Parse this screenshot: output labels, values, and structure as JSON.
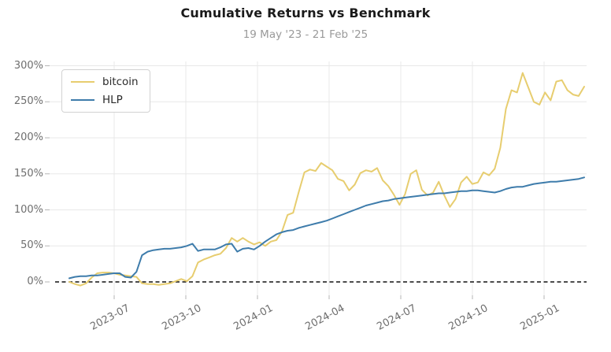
{
  "chart_data": {
    "type": "line",
    "title": "Cumulative Returns vs Benchmark",
    "subtitle": "19 May '23 - 21 Feb '25",
    "ylabel": "",
    "xlabel": "",
    "y_unit": "percent",
    "ylim": [
      -18,
      306
    ],
    "grid": true,
    "zero_line": "black-dashed",
    "legend_position": "upper-left",
    "y_ticks": [
      "0%",
      "50%",
      "100%",
      "150%",
      "200%",
      "250%",
      "300%"
    ],
    "y_tick_values": [
      0,
      50,
      100,
      150,
      200,
      250,
      300
    ],
    "x_ticks": [
      "2023-07",
      "2023-10",
      "2024-01",
      "2024-04",
      "2024-07",
      "2024-10",
      "2025-01"
    ],
    "x": [
      "2023-05-19",
      "2023-05-26",
      "2023-06-02",
      "2023-06-09",
      "2023-06-16",
      "2023-06-23",
      "2023-06-30",
      "2023-07-07",
      "2023-07-14",
      "2023-07-21",
      "2023-07-28",
      "2023-08-04",
      "2023-08-11",
      "2023-08-18",
      "2023-08-25",
      "2023-09-01",
      "2023-09-08",
      "2023-09-15",
      "2023-09-22",
      "2023-09-29",
      "2023-10-06",
      "2023-10-13",
      "2023-10-20",
      "2023-10-27",
      "2023-11-03",
      "2023-11-10",
      "2023-11-17",
      "2023-11-24",
      "2023-12-01",
      "2023-12-08",
      "2023-12-15",
      "2023-12-22",
      "2023-12-29",
      "2024-01-05",
      "2024-01-12",
      "2024-01-19",
      "2024-01-26",
      "2024-02-02",
      "2024-02-09",
      "2024-02-16",
      "2024-02-23",
      "2024-03-01",
      "2024-03-08",
      "2024-03-15",
      "2024-03-22",
      "2024-03-29",
      "2024-04-05",
      "2024-04-12",
      "2024-04-19",
      "2024-04-26",
      "2024-05-03",
      "2024-05-10",
      "2024-05-17",
      "2024-05-24",
      "2024-05-31",
      "2024-06-07",
      "2024-06-14",
      "2024-06-21",
      "2024-06-28",
      "2024-07-05",
      "2024-07-12",
      "2024-07-19",
      "2024-07-26",
      "2024-08-02",
      "2024-08-09",
      "2024-08-16",
      "2024-08-23",
      "2024-08-30",
      "2024-09-06",
      "2024-09-13",
      "2024-09-20",
      "2024-09-27",
      "2024-10-04",
      "2024-10-11",
      "2024-10-18",
      "2024-10-25",
      "2024-11-01",
      "2024-11-08",
      "2024-11-15",
      "2024-11-22",
      "2024-11-29",
      "2024-12-06",
      "2024-12-13",
      "2024-12-20",
      "2024-12-27",
      "2025-01-03",
      "2025-01-10",
      "2025-01-17",
      "2025-01-24",
      "2025-01-31",
      "2025-02-07",
      "2025-02-14",
      "2025-02-21"
    ],
    "series": [
      {
        "name": "bitcoin",
        "color": "#e7cd6f",
        "values": [
          0,
          -3,
          -5,
          -2,
          6,
          12,
          13,
          13,
          12,
          10,
          9,
          8,
          7,
          -2,
          -3,
          -3,
          -4,
          -3,
          -2,
          1,
          4,
          1,
          8,
          27,
          31,
          34,
          37,
          39,
          47,
          61,
          56,
          61,
          56,
          52,
          55,
          50,
          56,
          58,
          70,
          93,
          96,
          125,
          152,
          156,
          154,
          165,
          160,
          155,
          143,
          140,
          127,
          135,
          151,
          155,
          153,
          158,
          141,
          133,
          121,
          107,
          122,
          150,
          155,
          128,
          120,
          124,
          139,
          120,
          104,
          115,
          138,
          146,
          136,
          138,
          152,
          148,
          157,
          186,
          240,
          266,
          263,
          290,
          270,
          250,
          246,
          263,
          252,
          278,
          280,
          266,
          260,
          258,
          271
        ]
      },
      {
        "name": "HLP",
        "color": "#3e7cab",
        "values": [
          5,
          7,
          8,
          8,
          9,
          9,
          10,
          11,
          12,
          12,
          7,
          6,
          14,
          37,
          42,
          44,
          45,
          46,
          46,
          47,
          48,
          50,
          53,
          43,
          45,
          45,
          45,
          48,
          52,
          53,
          42,
          46,
          47,
          45,
          50,
          56,
          61,
          66,
          69,
          71,
          72,
          75,
          77,
          79,
          81,
          83,
          85,
          88,
          91,
          94,
          97,
          100,
          103,
          106,
          108,
          110,
          112,
          113,
          115,
          116,
          117,
          118,
          119,
          120,
          121,
          122,
          123,
          123,
          124,
          125,
          126,
          126,
          127,
          127,
          126,
          125,
          124,
          126,
          129,
          131,
          132,
          132,
          134,
          136,
          137,
          138,
          139,
          139,
          140,
          141,
          142,
          143,
          145
        ]
      }
    ]
  },
  "colors": {
    "grid": "#e8e8e8",
    "tick_mark": "#b5b5b5",
    "zero_line": "#111111",
    "title": "#1a1a1a",
    "subtitle": "#9a9a9a",
    "axis_label": "#6e6e6e"
  }
}
